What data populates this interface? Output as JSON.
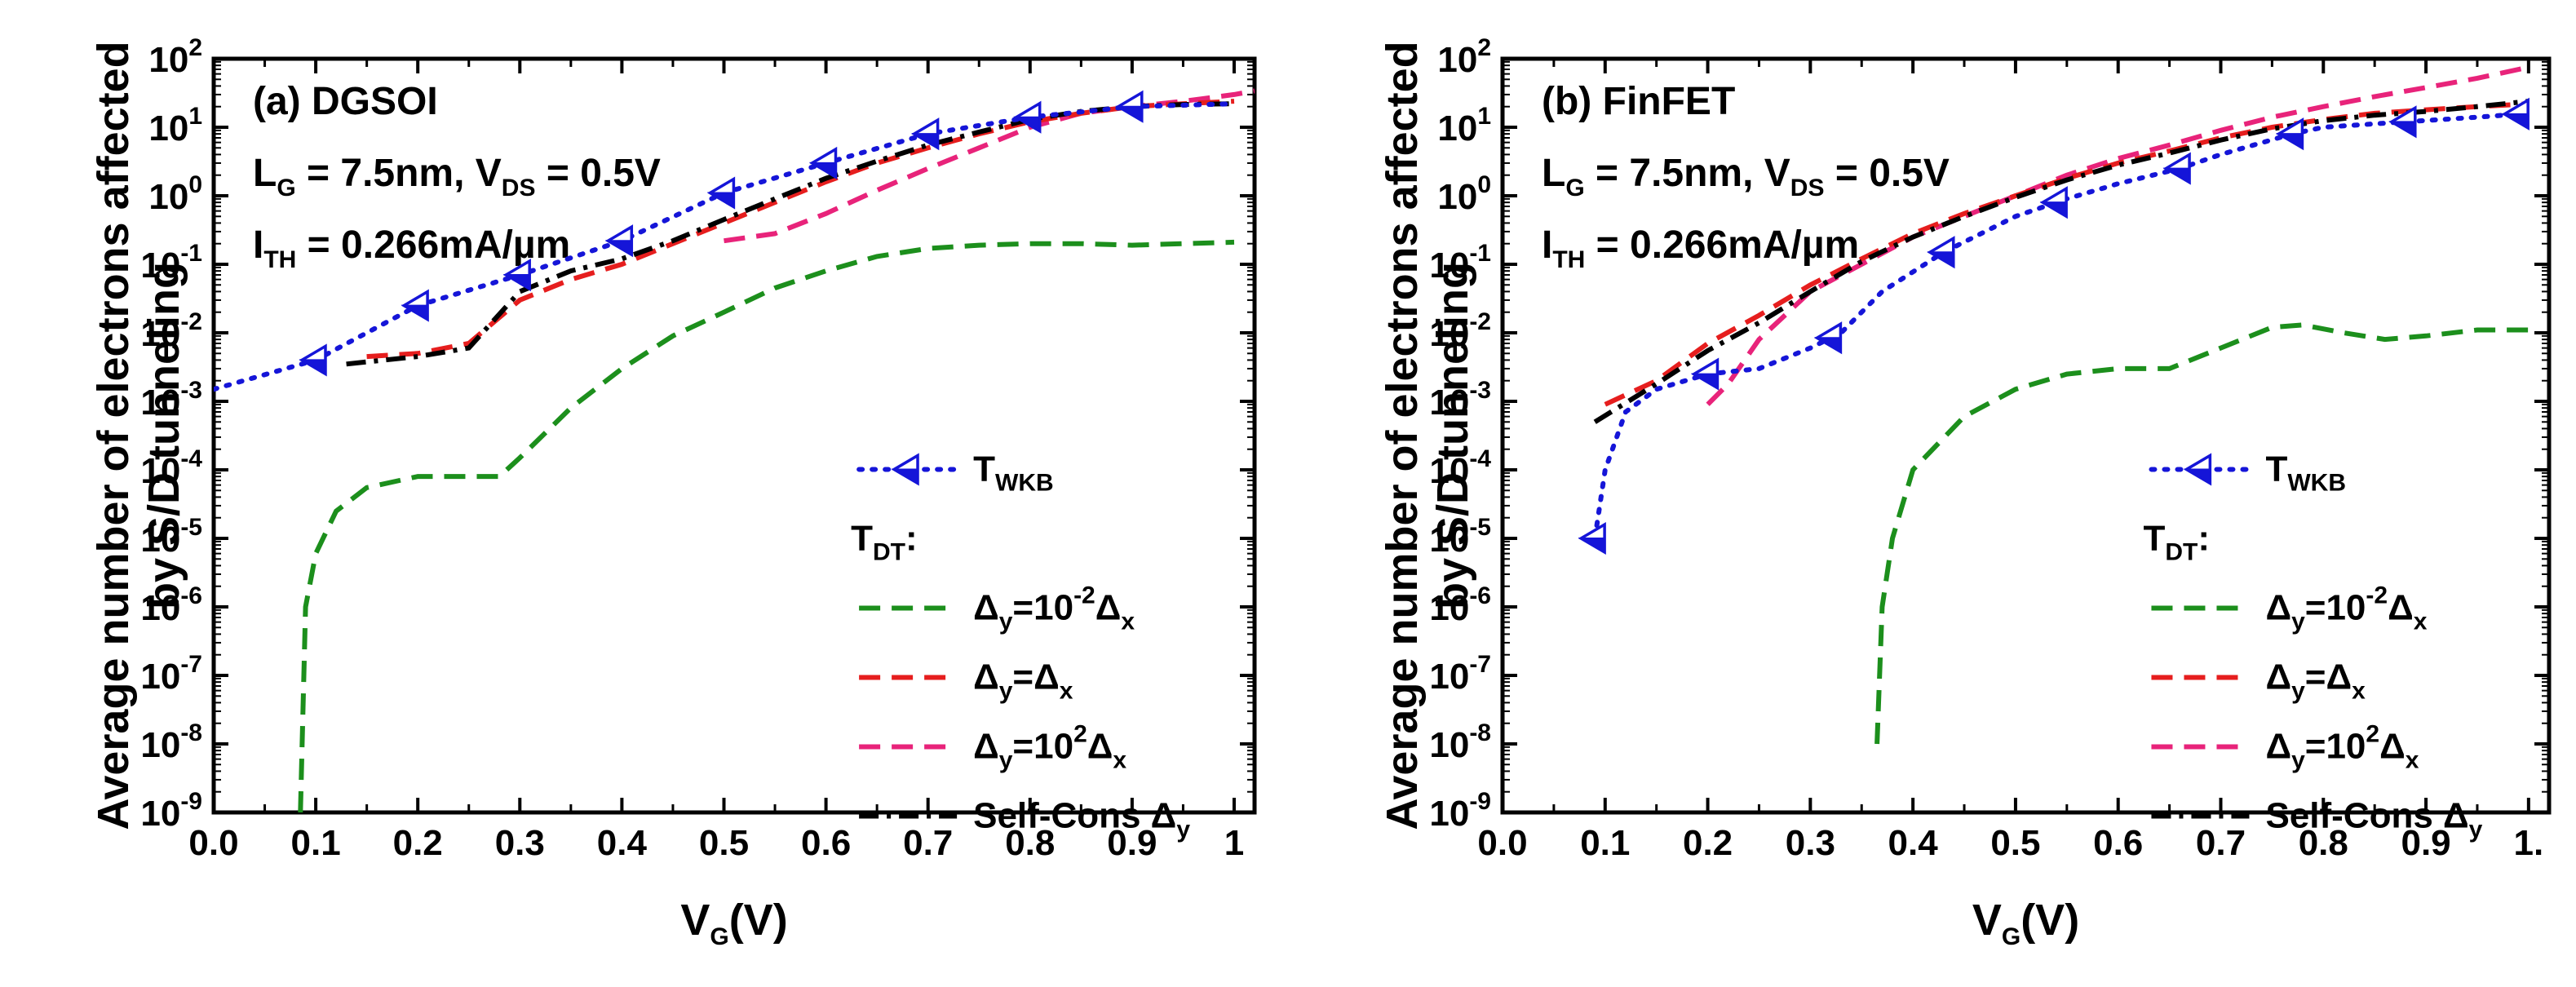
{
  "chart_data": [
    {
      "type": "line",
      "panel": "a",
      "annotations": [
        "(a) DGSOI",
        "L_G = 7.5nm, V_DS = 0.5V",
        "I_TH = 0.266mA/µm"
      ],
      "xlabel": "V_G(V)",
      "ylabel": [
        "Average number of electrons affected",
        "by S/D tunneling"
      ],
      "xlim": [
        0,
        1.02
      ],
      "ylim_log10": [
        -9,
        2
      ],
      "y_scale": "log",
      "x_ticks": [
        "0.0",
        "0.1",
        "0.2",
        "0.3",
        "0.4",
        "0.5",
        "0.6",
        "0.7",
        "0.8",
        "0.9",
        "1"
      ],
      "y_tick_exponents": [
        "2",
        "1",
        "0",
        "-1",
        "-2",
        "-3",
        "-4",
        "-5",
        "-6",
        "-7",
        "-8",
        "-9"
      ],
      "legend": {
        "placement": "lower-right",
        "items": [
          {
            "key": "wkb",
            "label": "T_WKB"
          },
          {
            "key": "header",
            "label": "T_DT:"
          },
          {
            "key": "dy_m2",
            "label": "Δy=10^-2 Δx"
          },
          {
            "key": "dy_0",
            "label": "Δy=Δx"
          },
          {
            "key": "dy_p2",
            "label": "Δy=10^2 Δx"
          },
          {
            "key": "selfcons",
            "label": "Self-Cons Δy"
          }
        ]
      },
      "series": [
        {
          "key": "wkb",
          "color": "#1515d8",
          "style": "dot",
          "marker": "triangle-left",
          "x": [
            0.0,
            0.1,
            0.2,
            0.3,
            0.4,
            0.5,
            0.6,
            0.7,
            0.8,
            0.9,
            1.0
          ],
          "y": [
            0.0015,
            0.004,
            0.025,
            0.07,
            0.22,
            1.1,
            3.0,
            8.0,
            14.0,
            20.0,
            22.0
          ],
          "marker_x": [
            0.1,
            0.2,
            0.3,
            0.4,
            0.5,
            0.6,
            0.7,
            0.8,
            0.9
          ]
        },
        {
          "key": "dy_m2",
          "color": "#1c8f1c",
          "style": "dash",
          "x": [
            0.085,
            0.09,
            0.1,
            0.12,
            0.15,
            0.2,
            0.25,
            0.28,
            0.3,
            0.35,
            0.4,
            0.45,
            0.5,
            0.55,
            0.6,
            0.65,
            0.7,
            0.75,
            0.8,
            0.85,
            0.9,
            0.95,
            1.0
          ],
          "y": [
            1e-09,
            1e-06,
            6e-06,
            2.5e-05,
            5.5e-05,
            8e-05,
            8e-05,
            8e-05,
            0.00015,
            0.0008,
            0.003,
            0.009,
            0.02,
            0.045,
            0.08,
            0.13,
            0.17,
            0.19,
            0.2,
            0.2,
            0.19,
            0.2,
            0.21
          ]
        },
        {
          "key": "dy_0",
          "color": "#e61e1e",
          "style": "dash",
          "x": [
            0.15,
            0.2,
            0.25,
            0.3,
            0.35,
            0.4,
            0.45,
            0.5,
            0.55,
            0.6,
            0.65,
            0.7,
            0.75,
            0.8,
            0.85,
            0.9,
            0.95,
            1.0
          ],
          "y": [
            0.0045,
            0.005,
            0.007,
            0.03,
            0.06,
            0.1,
            0.2,
            0.4,
            0.8,
            1.6,
            3.0,
            5.0,
            8.0,
            12.0,
            16.0,
            20.0,
            22.0,
            24.0
          ]
        },
        {
          "key": "dy_p2",
          "color": "#e8237a",
          "style": "dash",
          "x": [
            0.5,
            0.55,
            0.6,
            0.65,
            0.7,
            0.75,
            0.8,
            0.85,
            0.9,
            0.95,
            1.0,
            1.02
          ],
          "y": [
            0.22,
            0.28,
            0.55,
            1.2,
            2.5,
            5.0,
            10.0,
            16.0,
            20.0,
            24.0,
            30.0,
            34.0
          ]
        },
        {
          "key": "selfcons",
          "color": "#000000",
          "style": "dashdot",
          "x": [
            0.13,
            0.2,
            0.25,
            0.3,
            0.35,
            0.4,
            0.45,
            0.5,
            0.55,
            0.6,
            0.65,
            0.7,
            0.75,
            0.8,
            0.85,
            0.9,
            0.95,
            1.0
          ],
          "y": [
            0.0035,
            0.0045,
            0.006,
            0.04,
            0.08,
            0.12,
            0.22,
            0.45,
            0.9,
            1.8,
            3.2,
            5.5,
            8.5,
            13.0,
            17.0,
            20.0,
            21.5,
            22.0
          ]
        }
      ]
    },
    {
      "type": "line",
      "panel": "b",
      "annotations": [
        "(b) FinFET",
        "L_G = 7.5nm, V_DS = 0.5V",
        "I_TH = 0.266mA/µm"
      ],
      "xlabel": "V_G(V)",
      "ylabel": [
        "Average number of electrons affected",
        "by S/D tunneling"
      ],
      "xlim": [
        0,
        1.02
      ],
      "ylim_log10": [
        -9,
        2
      ],
      "y_scale": "log",
      "x_ticks": [
        "0.0",
        "0.1",
        "0.2",
        "0.3",
        "0.4",
        "0.5",
        "0.6",
        "0.7",
        "0.8",
        "0.9",
        "1."
      ],
      "y_tick_exponents": [
        "2",
        "1",
        "0",
        "-1",
        "-2",
        "-3",
        "-4",
        "-5",
        "-6",
        "-7",
        "-8",
        "-9"
      ],
      "legend": {
        "placement": "lower-right",
        "items": [
          {
            "key": "wkb",
            "label": "T_WKB"
          },
          {
            "key": "header",
            "label": "T_DT:"
          },
          {
            "key": "dy_m2",
            "label": "Δy=10^-2 Δx"
          },
          {
            "key": "dy_0",
            "label": "Δy=Δx"
          },
          {
            "key": "dy_p2",
            "label": "Δy=10^2 Δx"
          },
          {
            "key": "selfcons",
            "label": "Self-Cons Δy"
          }
        ]
      },
      "series": [
        {
          "key": "wkb",
          "color": "#1515d8",
          "style": "dot",
          "marker": "triangle-left",
          "x": [
            0.09,
            0.1,
            0.12,
            0.15,
            0.2,
            0.25,
            0.3,
            0.33,
            0.37,
            0.43,
            0.5,
            0.55,
            0.6,
            0.66,
            0.7,
            0.77,
            0.8,
            0.88,
            0.95,
            1.0
          ],
          "y": [
            1e-05,
            0.0001,
            0.0007,
            0.0015,
            0.0025,
            0.003,
            0.006,
            0.01,
            0.04,
            0.15,
            0.5,
            0.9,
            1.5,
            2.5,
            4.0,
            8.0,
            10.0,
            12.0,
            14.0,
            16.0
          ],
          "marker_x": [
            0.09,
            0.2,
            0.32,
            0.43,
            0.54,
            0.66,
            0.77,
            0.88,
            0.99
          ]
        },
        {
          "key": "dy_m2",
          "color": "#1c8f1c",
          "style": "dash",
          "x": [
            0.365,
            0.37,
            0.38,
            0.4,
            0.45,
            0.5,
            0.55,
            0.6,
            0.65,
            0.7,
            0.75,
            0.78,
            0.82,
            0.86,
            0.9,
            0.95,
            1.0
          ],
          "y": [
            1e-08,
            1e-06,
            1e-05,
            0.0001,
            0.0006,
            0.0015,
            0.0025,
            0.003,
            0.003,
            0.006,
            0.012,
            0.013,
            0.01,
            0.008,
            0.009,
            0.011,
            0.011
          ]
        },
        {
          "key": "dy_0",
          "color": "#e61e1e",
          "style": "dash",
          "x": [
            0.1,
            0.15,
            0.2,
            0.25,
            0.3,
            0.35,
            0.4,
            0.45,
            0.5,
            0.55,
            0.6,
            0.65,
            0.7,
            0.75,
            0.8,
            0.85,
            0.9,
            0.95,
            1.0
          ],
          "y": [
            0.0009,
            0.002,
            0.007,
            0.018,
            0.05,
            0.12,
            0.28,
            0.55,
            1.0,
            1.8,
            3.0,
            4.5,
            7.0,
            10.0,
            13.0,
            16.0,
            18.0,
            20.0,
            22.0
          ]
        },
        {
          "key": "dy_p2",
          "color": "#e8237a",
          "style": "dash",
          "x": [
            0.2,
            0.22,
            0.25,
            0.3,
            0.35,
            0.4,
            0.45,
            0.5,
            0.55,
            0.6,
            0.65,
            0.7,
            0.75,
            0.8,
            0.85,
            0.9,
            0.95,
            1.0
          ],
          "y": [
            0.0009,
            0.0018,
            0.008,
            0.04,
            0.1,
            0.25,
            0.5,
            1.0,
            2.0,
            3.5,
            5.5,
            9.0,
            14.0,
            20.0,
            28.0,
            38.0,
            52.0,
            75.0
          ]
        },
        {
          "key": "selfcons",
          "color": "#000000",
          "style": "dashdot",
          "x": [
            0.09,
            0.15,
            0.2,
            0.25,
            0.3,
            0.35,
            0.4,
            0.45,
            0.5,
            0.55,
            0.6,
            0.65,
            0.7,
            0.75,
            0.8,
            0.85,
            0.9,
            0.95,
            1.0
          ],
          "y": [
            0.0005,
            0.0018,
            0.0055,
            0.014,
            0.04,
            0.11,
            0.25,
            0.5,
            0.95,
            1.7,
            2.8,
            4.2,
            6.5,
            9.5,
            12.5,
            15.0,
            17.0,
            20.0,
            24.0
          ]
        }
      ]
    }
  ]
}
